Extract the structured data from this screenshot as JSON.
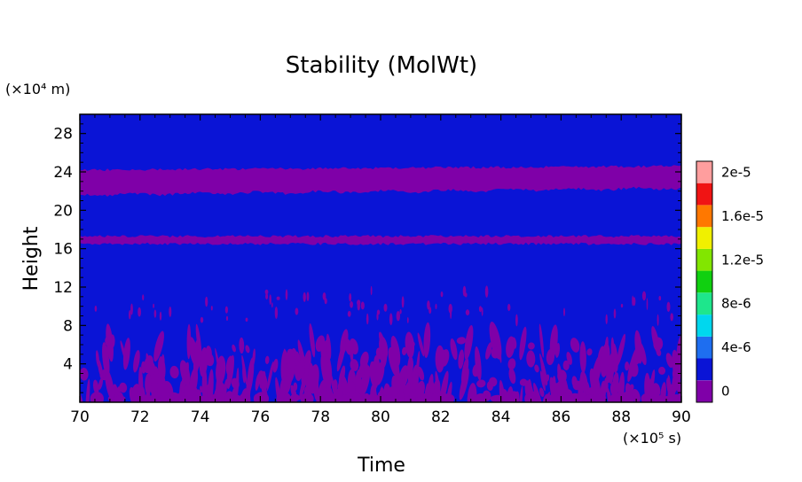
{
  "chart_data": {
    "type": "heatmap",
    "title": "Stability (MolWt)",
    "xlabel": "Time",
    "ylabel": "Height",
    "x_unit": "(×10⁵ s)",
    "y_unit": "(×10⁴ m)",
    "xlim": [
      70,
      90
    ],
    "ylim": [
      0,
      30
    ],
    "x_ticks": [
      70,
      72,
      74,
      76,
      78,
      80,
      82,
      84,
      86,
      88,
      90
    ],
    "y_ticks": [
      4,
      8,
      12,
      16,
      20,
      24,
      28
    ],
    "colorbar": {
      "levels": [
        {
          "value": "0",
          "color": "#7f00a8"
        },
        {
          "value": "",
          "color": "#0a14d6"
        },
        {
          "value": "4e-6",
          "color": "#1e6ef0"
        },
        {
          "value": "",
          "color": "#00d7ee"
        },
        {
          "value": "8e-6",
          "color": "#1ee68c"
        },
        {
          "value": "",
          "color": "#10d010"
        },
        {
          "value": "1.2e-5",
          "color": "#82e600"
        },
        {
          "value": "",
          "color": "#f0f000"
        },
        {
          "value": "1.6e-5",
          "color": "#ff7800"
        },
        {
          "value": "",
          "color": "#f01414"
        },
        {
          "value": "2e-5",
          "color": "#ff9e9e"
        }
      ]
    },
    "background_level_color": "#0a14d6",
    "purple_level_color": "#7f00a8",
    "regions": [
      {
        "level": "0",
        "description": "band",
        "y_range": [
          21.6,
          24.2
        ]
      },
      {
        "level": "0",
        "description": "band",
        "y_range": [
          16.5,
          17.3
        ]
      },
      {
        "level": "0",
        "description": "patches",
        "y_range": [
          0,
          7
        ]
      }
    ]
  }
}
